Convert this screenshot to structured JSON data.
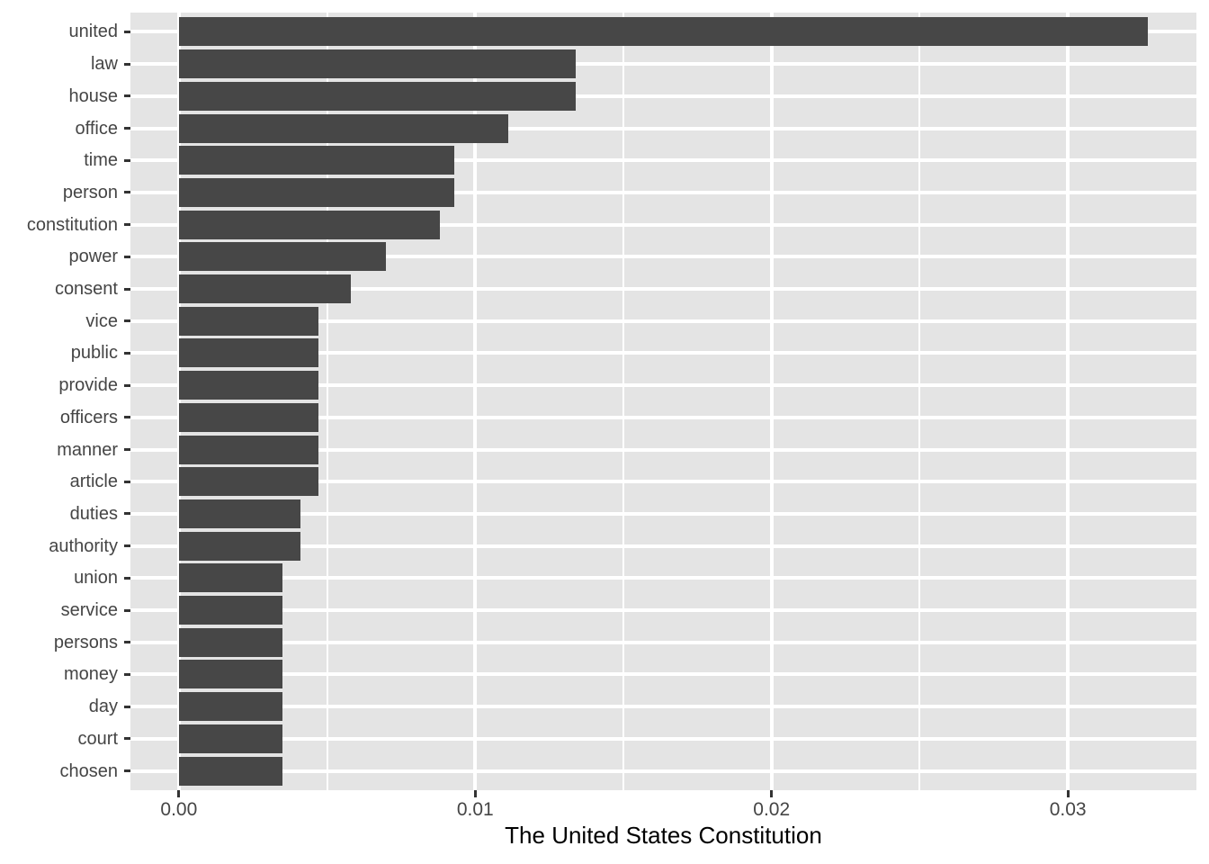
{
  "chart_data": {
    "type": "bar",
    "orientation": "horizontal",
    "title": "",
    "xlabel": "The United States Constitution",
    "ylabel": "",
    "categories": [
      "united",
      "law",
      "house",
      "office",
      "time",
      "person",
      "constitution",
      "power",
      "consent",
      "vice",
      "public",
      "provide",
      "officers",
      "manner",
      "article",
      "duties",
      "authority",
      "union",
      "service",
      "persons",
      "money",
      "day",
      "court",
      "chosen"
    ],
    "values": [
      0.0327,
      0.0134,
      0.0134,
      0.0111,
      0.0093,
      0.0093,
      0.0088,
      0.007,
      0.0058,
      0.0047,
      0.0047,
      0.0047,
      0.0047,
      0.0047,
      0.0047,
      0.0041,
      0.0041,
      0.0035,
      0.0035,
      0.0035,
      0.0035,
      0.0035,
      0.0035,
      0.0035
    ],
    "x_tick_labels": [
      "0.00",
      "0.01",
      "0.02",
      "0.03"
    ],
    "x_tick_values": [
      0,
      0.01,
      0.02,
      0.03
    ],
    "x_minor_tick_values": [
      0.005,
      0.015,
      0.025
    ],
    "xlim": [
      -0.001635,
      0.034335
    ],
    "grid": "on",
    "legend": "none",
    "theme": "ggplot-gray",
    "colors": {
      "bar": "#474747",
      "panel_background": "#E4E4E4",
      "gridline": "#FFFFFF",
      "tick_mark": "#333333",
      "axis_text": "#454545",
      "axis_title": "#000000",
      "page_background": "#FFFFFF"
    }
  }
}
